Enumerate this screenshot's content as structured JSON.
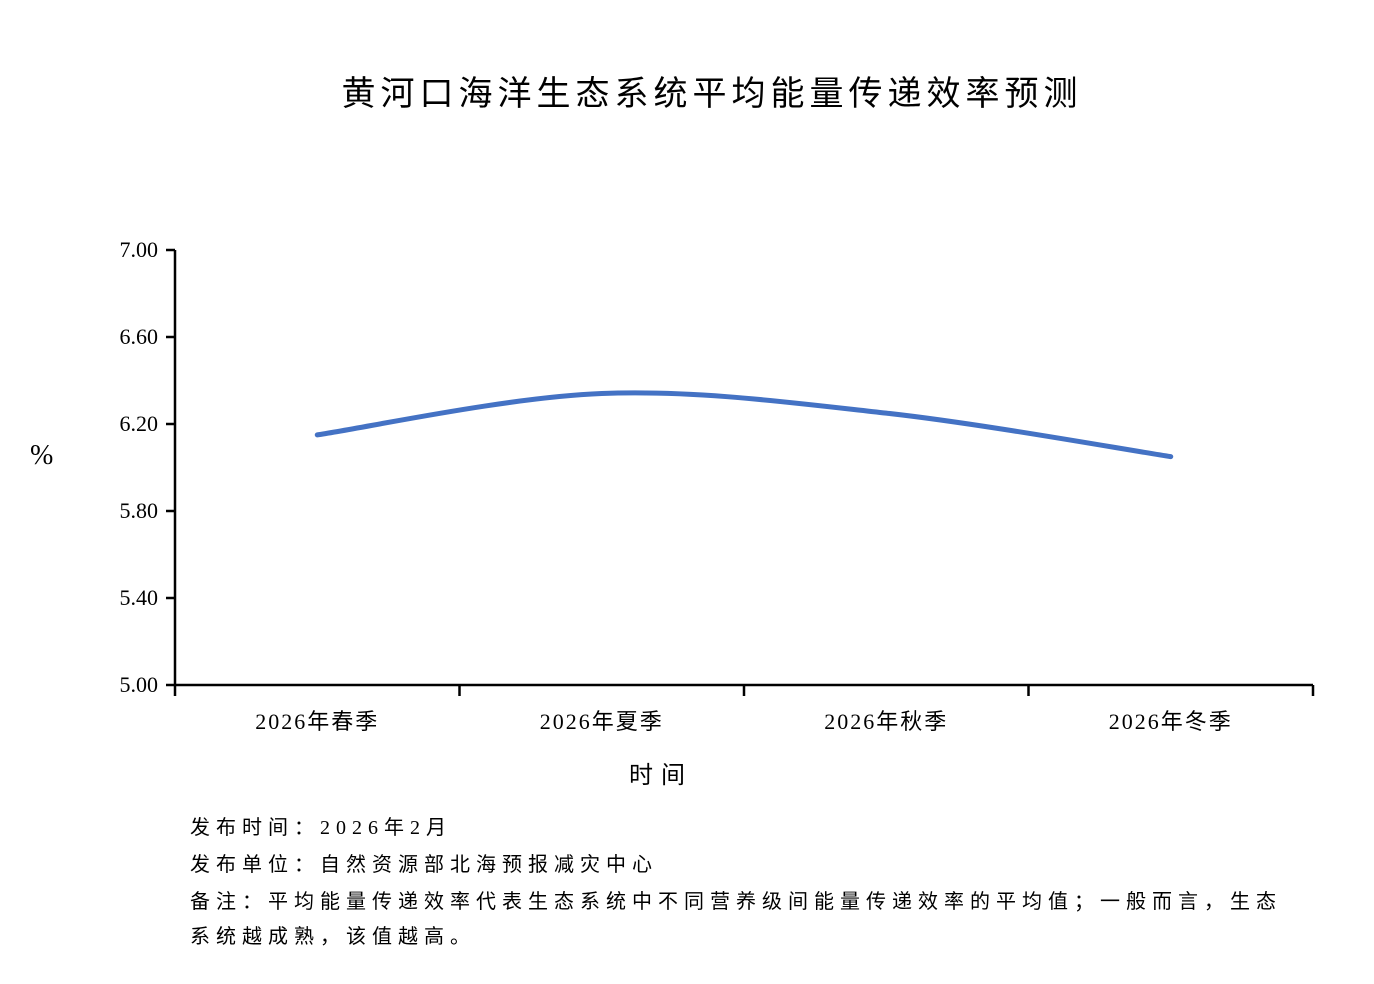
{
  "chart_data": {
    "type": "line",
    "title": "黄河口海洋生态系统平均能量传递效率预测",
    "categories": [
      "2026年春季",
      "2026年夏季",
      "2026年秋季",
      "2026年冬季"
    ],
    "values": [
      6.15,
      6.34,
      6.25,
      6.05
    ],
    "xlabel": "时间",
    "ylabel": "%",
    "ylim": [
      5.0,
      7.0
    ],
    "yticks": [
      5.0,
      5.4,
      5.8,
      6.2,
      6.6,
      7.0
    ],
    "ytick_labels": [
      "5.00",
      "5.40",
      "5.80",
      "6.20",
      "6.60",
      "7.00"
    ],
    "grid": false,
    "legend": "none",
    "smooth": true,
    "line_color": "#4472C4",
    "axis_color": "#000000"
  },
  "footer": {
    "publish_time": "发布时间：2026年2月",
    "publish_org": "发布单位：自然资源部北海预报减灾中心",
    "note_line1": "备注：平均能量传递效率代表生态系统中不同营养级间能量传递效率的平均值；一般而言，生态",
    "note_line2": "系统越成熟，该值越高。"
  }
}
